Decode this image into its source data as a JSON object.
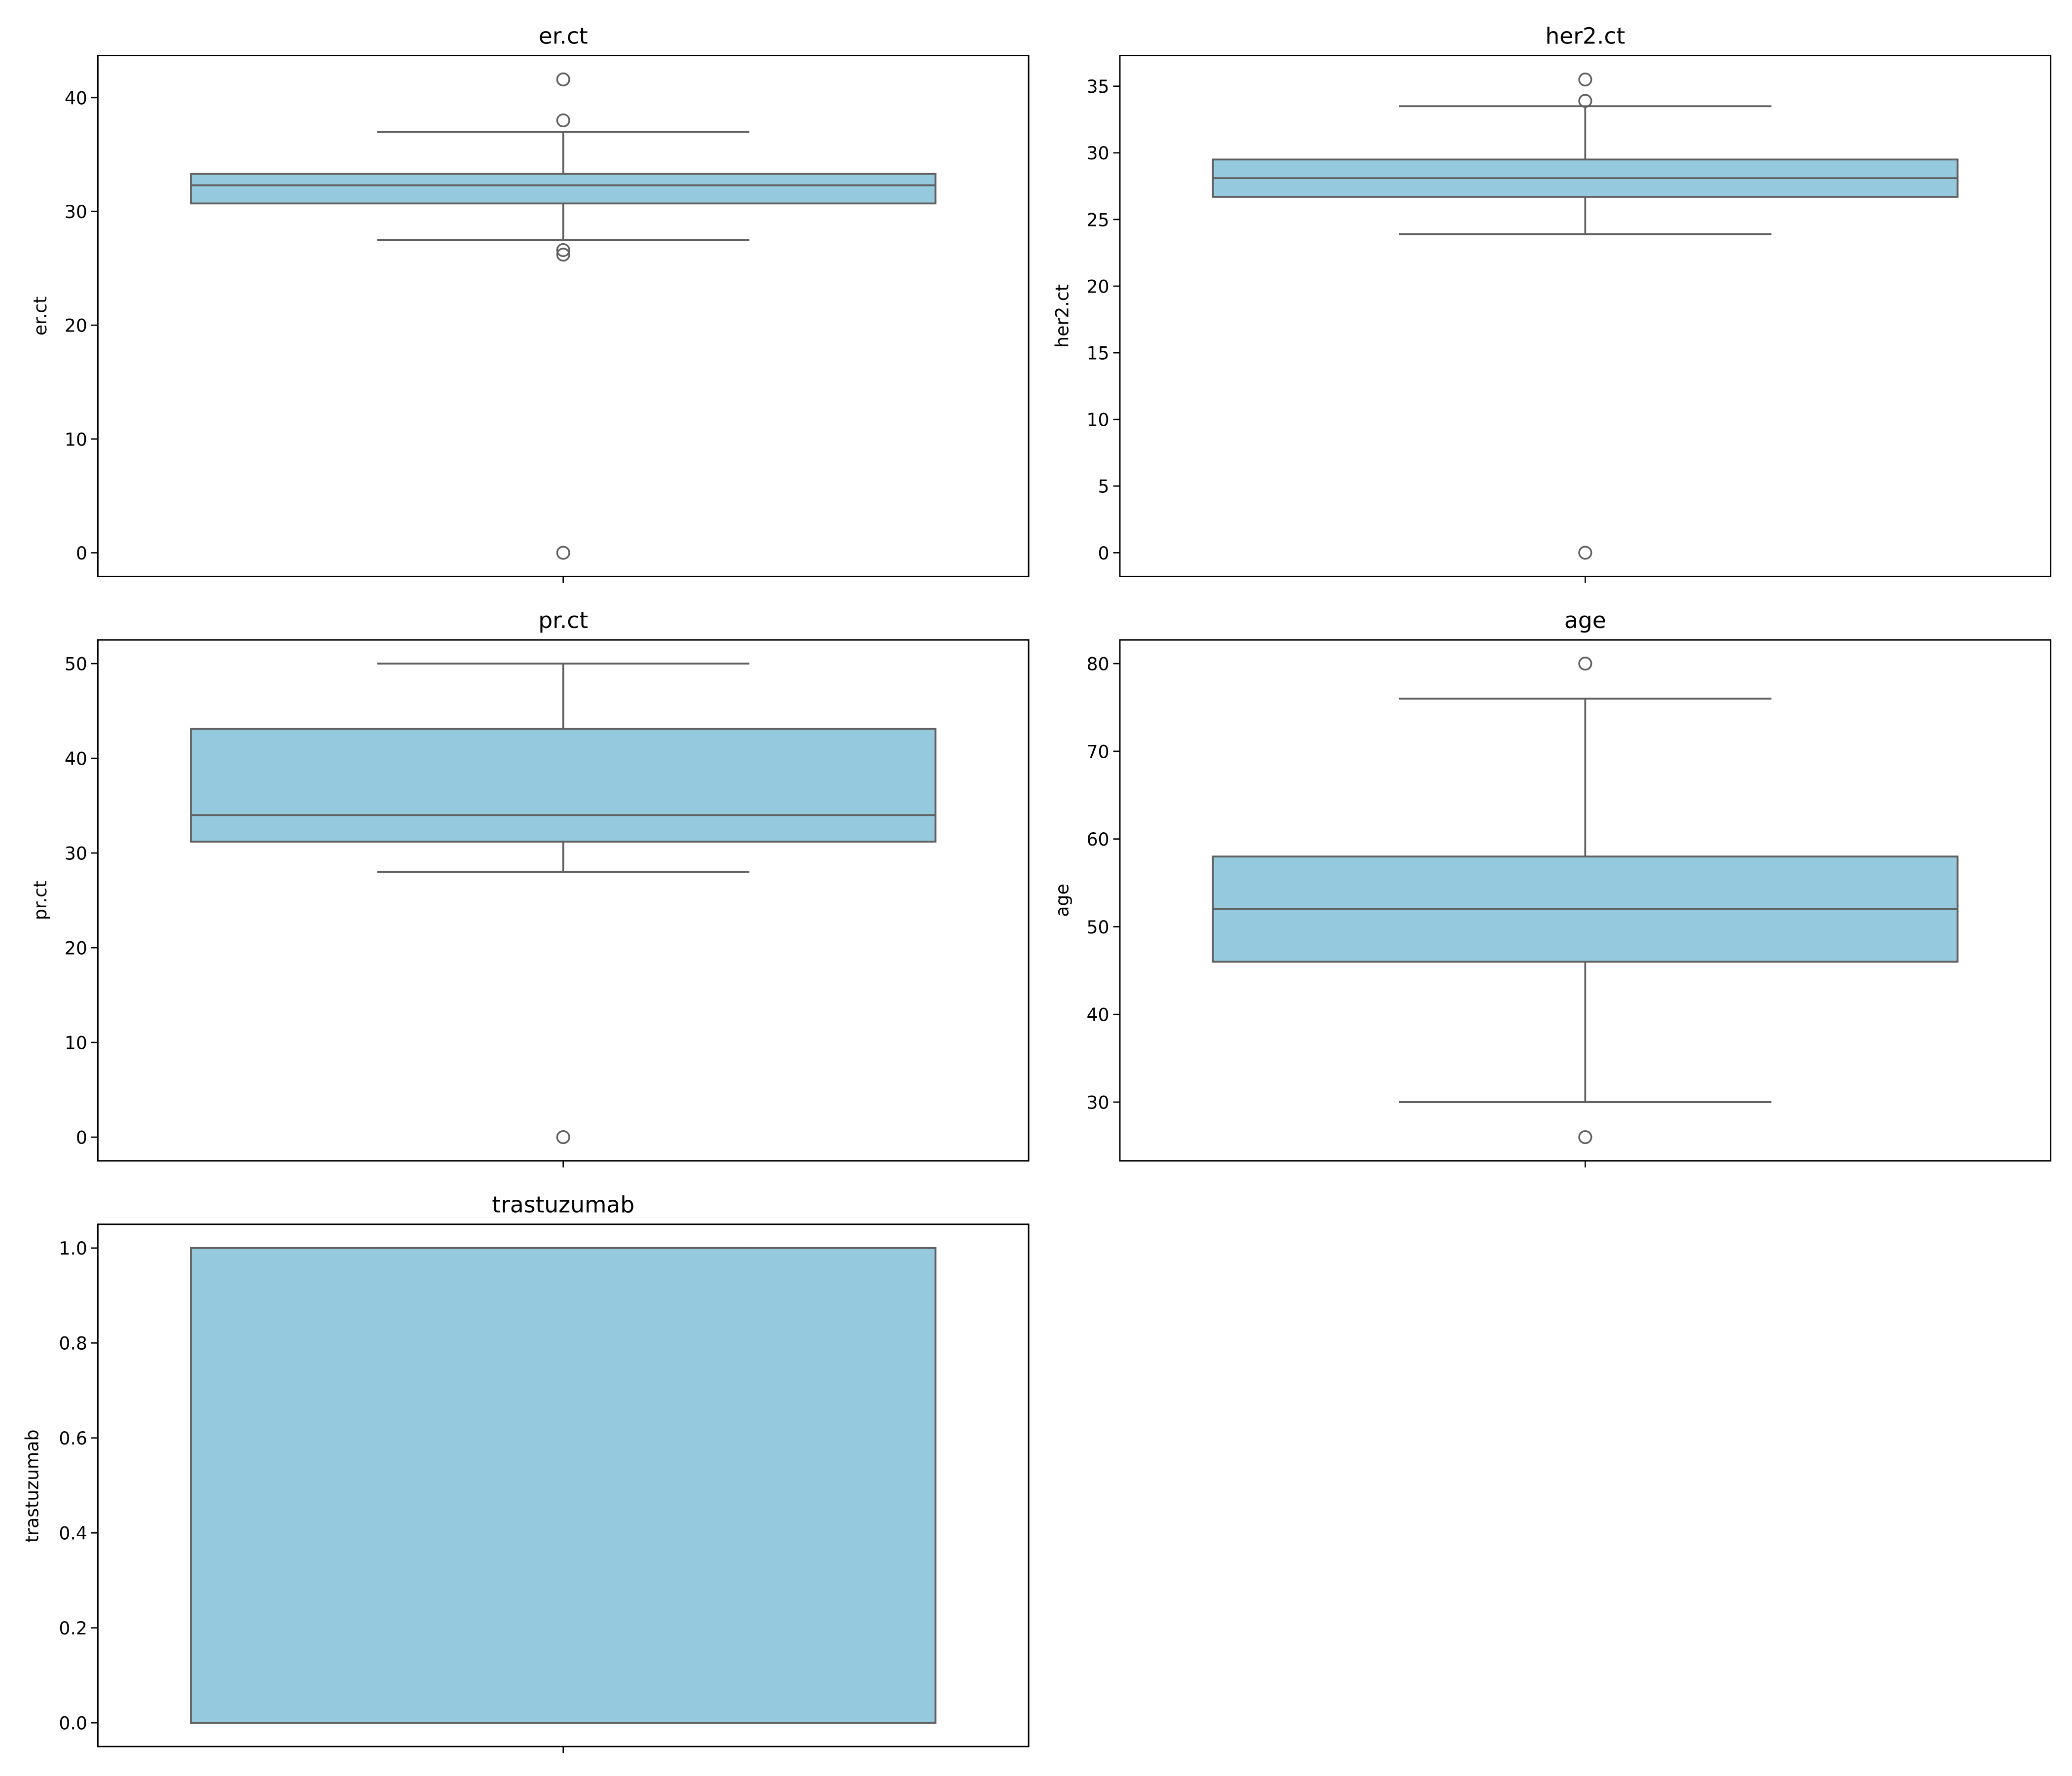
{
  "chart_data": [
    {
      "type": "box",
      "title": "er.ct",
      "ylabel": "er.ct",
      "ylim": [
        -2.08,
        43.7
      ],
      "yticks": [
        0,
        10,
        20,
        30,
        40
      ],
      "box": {
        "q1": 30.7,
        "median": 32.3,
        "q3": 33.3,
        "whisker_low": 27.5,
        "whisker_high": 37.0
      },
      "outliers": [
        41.6,
        38.0,
        26.6,
        26.2,
        0.0
      ],
      "colors": {
        "box": "#94c9de",
        "edge": "#606060"
      }
    },
    {
      "type": "box",
      "title": "her2.ct",
      "ylabel": "her2.ct",
      "ylim": [
        -1.78,
        37.3
      ],
      "yticks": [
        0,
        5,
        10,
        15,
        20,
        25,
        30,
        35
      ],
      "box": {
        "q1": 26.7,
        "median": 28.1,
        "q3": 29.5,
        "whisker_low": 23.9,
        "whisker_high": 33.5
      },
      "outliers": [
        35.5,
        33.9,
        0.0
      ],
      "colors": {
        "box": "#94c9de",
        "edge": "#606060"
      }
    },
    {
      "type": "box",
      "title": "pr.ct",
      "ylabel": "pr.ct",
      "ylim": [
        -2.5,
        52.5
      ],
      "yticks": [
        0,
        10,
        20,
        30,
        40,
        50
      ],
      "box": {
        "q1": 31.2,
        "median": 34.0,
        "q3": 43.1,
        "whisker_low": 28.0,
        "whisker_high": 50.0
      },
      "outliers": [
        0.0
      ],
      "colors": {
        "box": "#94c9de",
        "edge": "#606060"
      }
    },
    {
      "type": "box",
      "title": "age",
      "ylabel": "age",
      "ylim": [
        23.3,
        82.7
      ],
      "yticks": [
        30,
        40,
        50,
        60,
        70,
        80
      ],
      "box": {
        "q1": 46.0,
        "median": 52.0,
        "q3": 58.0,
        "whisker_low": 30.0,
        "whisker_high": 76.0
      },
      "outliers": [
        80.0,
        26.0
      ],
      "colors": {
        "box": "#94c9de",
        "edge": "#606060"
      }
    },
    {
      "type": "box",
      "title": "trastuzumab",
      "ylabel": "trastuzumab",
      "ylim": [
        -0.05,
        1.05
      ],
      "yticks": [
        0.0,
        0.2,
        0.4,
        0.6,
        0.8,
        1.0
      ],
      "ytick_labels": [
        "0.0",
        "0.2",
        "0.4",
        "0.6",
        "0.8",
        "1.0"
      ],
      "box": {
        "q1": 0.0,
        "median": 1.0,
        "q3": 1.0,
        "whisker_low": 0.0,
        "whisker_high": 1.0
      },
      "outliers": [],
      "colors": {
        "box": "#94c9de",
        "edge": "#606060"
      }
    }
  ]
}
